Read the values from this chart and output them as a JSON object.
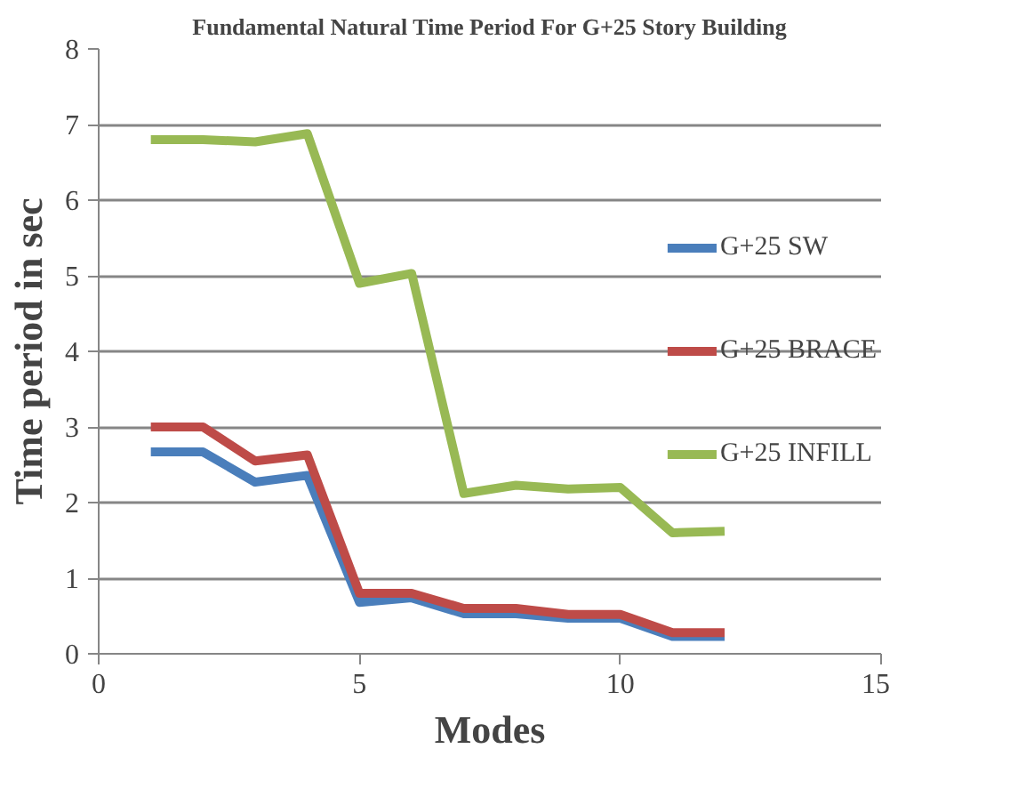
{
  "chart_data": {
    "type": "line",
    "title": "Fundamental Natural Time Period For G+25 Story Building",
    "xlabel": "Modes",
    "ylabel": "Time period in sec",
    "x": [
      1,
      2,
      3,
      4,
      5,
      6,
      7,
      8,
      9,
      10,
      11,
      12
    ],
    "series": [
      {
        "name": "G+25 SW",
        "color": "#4a7ebb",
        "values": [
          2.67,
          2.67,
          2.27,
          2.36,
          0.68,
          0.74,
          0.53,
          0.53,
          0.47,
          0.47,
          0.23,
          0.23
        ]
      },
      {
        "name": "G+25 BRACE",
        "color": "#be4b48",
        "values": [
          3.0,
          3.0,
          2.55,
          2.63,
          0.8,
          0.8,
          0.6,
          0.6,
          0.52,
          0.52,
          0.28,
          0.28
        ]
      },
      {
        "name": "G+25 INFILL",
        "color": "#98b954",
        "values": [
          6.8,
          6.8,
          6.77,
          6.88,
          4.9,
          5.03,
          2.12,
          2.23,
          2.18,
          2.2,
          1.6,
          1.62
        ]
      }
    ],
    "xlim": [
      0,
      15
    ],
    "xticks": [
      0,
      5,
      10,
      15
    ],
    "ylim": [
      0,
      8
    ],
    "yticks": [
      0,
      1,
      2,
      3,
      4,
      5,
      6,
      7,
      8
    ],
    "grid": "y",
    "legend": "right",
    "marker": "none",
    "line_style": "solid"
  }
}
